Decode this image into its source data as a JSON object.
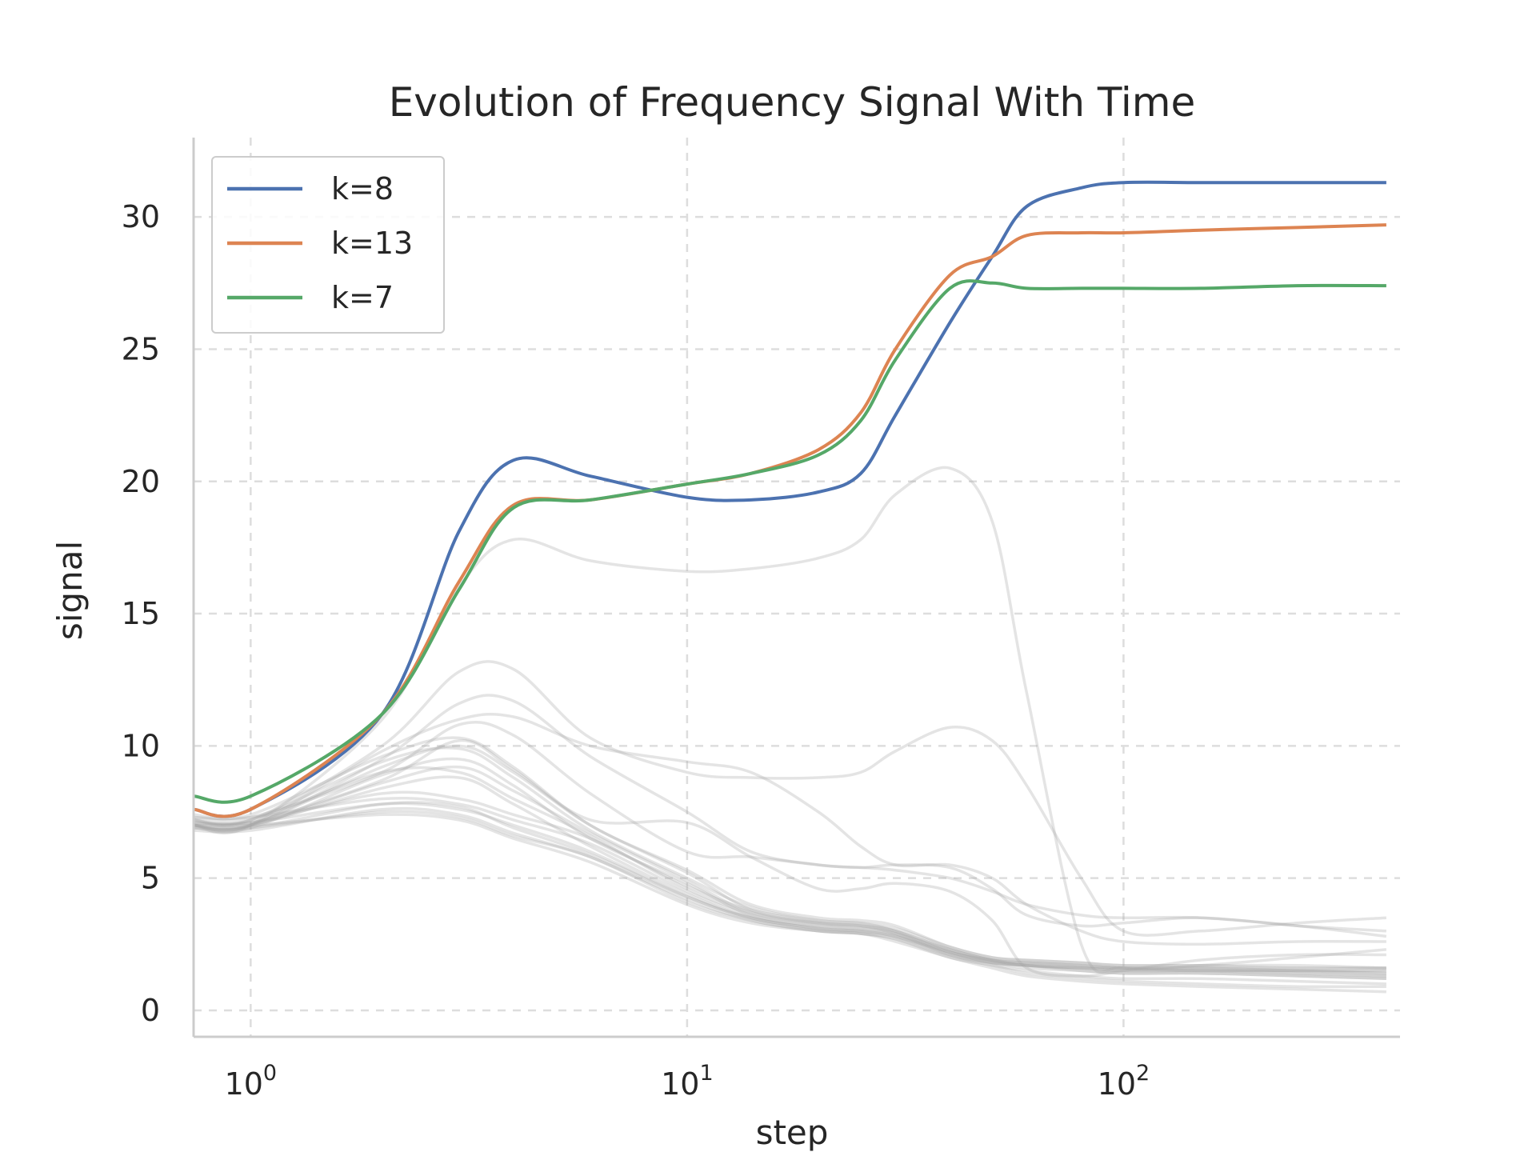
{
  "chart_data": {
    "type": "line",
    "title": "Evolution of Frequency Signal With Time",
    "xlabel": "step",
    "ylabel": "signal",
    "xscale": "log",
    "xlim": [
      0.74,
      430
    ],
    "ylim": [
      -1,
      33
    ],
    "x_ticks": [
      {
        "value": 1,
        "base": "10",
        "exp": "0"
      },
      {
        "value": 10,
        "base": "10",
        "exp": "1"
      },
      {
        "value": 100,
        "base": "10",
        "exp": "2"
      }
    ],
    "y_ticks": [
      0,
      5,
      10,
      15,
      20,
      25,
      30
    ],
    "grid": true,
    "legend_position": "top-left",
    "series": [
      {
        "name": "k=8",
        "color": "#4c72b0",
        "x": [
          0.74,
          1,
          2,
          3,
          4,
          6,
          10,
          14,
          20,
          25,
          30,
          40,
          50,
          60,
          80,
          100,
          150,
          250,
          400
        ],
        "y": [
          7.6,
          7.6,
          11.2,
          18.1,
          20.8,
          20.2,
          19.4,
          19.3,
          19.6,
          20.3,
          22.5,
          26.0,
          28.5,
          30.4,
          31.1,
          31.3,
          31.3,
          31.3,
          31.3
        ]
      },
      {
        "name": "k=13",
        "color": "#dd8452",
        "x": [
          0.74,
          1,
          2,
          3,
          4,
          6,
          10,
          14,
          20,
          25,
          30,
          40,
          50,
          60,
          80,
          100,
          150,
          250,
          400
        ],
        "y": [
          7.6,
          7.6,
          11.2,
          16.2,
          19.1,
          19.3,
          19.9,
          20.3,
          21.2,
          22.6,
          25.0,
          27.8,
          28.5,
          29.3,
          29.4,
          29.4,
          29.5,
          29.6,
          29.7
        ]
      },
      {
        "name": "k=7",
        "color": "#55a868",
        "x": [
          0.74,
          1,
          2,
          3,
          4,
          6,
          10,
          14,
          20,
          25,
          30,
          40,
          50,
          60,
          80,
          100,
          150,
          250,
          400
        ],
        "y": [
          8.1,
          8.1,
          11.2,
          15.9,
          19.0,
          19.3,
          19.9,
          20.3,
          21.0,
          22.3,
          24.6,
          27.3,
          27.5,
          27.3,
          27.3,
          27.3,
          27.3,
          27.4,
          27.4
        ]
      }
    ],
    "background_series": {
      "color": "#a6a6a6",
      "x": [
        0.74,
        1,
        2,
        3,
        4,
        6,
        10,
        14,
        20,
        25,
        30,
        40,
        50,
        60,
        80,
        100,
        150,
        250,
        400
      ],
      "lines": [
        [
          7.0,
          7.0,
          11.0,
          16.0,
          17.8,
          17.0,
          16.6,
          16.7,
          17.1,
          17.8,
          19.5,
          20.5,
          18.5,
          12.0,
          2.5,
          1.6,
          1.7,
          2.0,
          2.3
        ],
        [
          7.2,
          7.2,
          10.0,
          12.8,
          12.9,
          10.3,
          9.0,
          8.8,
          8.8,
          9.0,
          9.8,
          10.7,
          10.2,
          8.5,
          5.0,
          3.0,
          3.0,
          3.3,
          3.5
        ],
        [
          7.0,
          7.0,
          9.5,
          11.6,
          11.7,
          9.6,
          7.5,
          6.0,
          5.5,
          5.4,
          5.3,
          5.0,
          4.5,
          4.0,
          3.6,
          3.5,
          3.5,
          3.2,
          2.8
        ],
        [
          7.0,
          7.0,
          9.8,
          11.0,
          11.1,
          10.0,
          9.4,
          9.0,
          7.5,
          6.2,
          5.5,
          5.5,
          5.0,
          4.0,
          3.0,
          2.6,
          2.5,
          2.6,
          2.6
        ],
        [
          7.3,
          7.3,
          9.0,
          10.8,
          10.4,
          8.2,
          6.0,
          5.8,
          5.5,
          5.4,
          5.5,
          5.4,
          4.6,
          3.6,
          3.2,
          3.3,
          3.5,
          3.2,
          3.0
        ],
        [
          7.1,
          7.1,
          8.7,
          10.2,
          9.1,
          7.2,
          7.1,
          5.8,
          4.6,
          4.6,
          4.8,
          4.5,
          3.4,
          1.6,
          1.3,
          1.5,
          1.9,
          2.1,
          2.1
        ],
        [
          7.0,
          7.0,
          9.2,
          10.0,
          9.0,
          7.0,
          5.2,
          3.8,
          3.3,
          3.2,
          3.0,
          2.3,
          1.9,
          1.7,
          1.6,
          1.5,
          1.5,
          1.4,
          1.3
        ],
        [
          6.9,
          6.9,
          8.9,
          9.5,
          8.5,
          6.5,
          4.8,
          3.6,
          3.2,
          3.1,
          2.9,
          2.1,
          1.8,
          1.7,
          1.5,
          1.4,
          1.4,
          1.3,
          1.2
        ],
        [
          7.2,
          7.2,
          9.4,
          9.9,
          8.8,
          6.8,
          5.0,
          3.9,
          3.4,
          3.3,
          3.0,
          2.2,
          1.9,
          1.8,
          1.7,
          1.6,
          1.6,
          1.5,
          1.4
        ],
        [
          7.0,
          7.0,
          8.4,
          8.8,
          7.8,
          6.2,
          4.4,
          3.5,
          3.1,
          3.0,
          2.8,
          2.2,
          1.8,
          1.7,
          1.6,
          1.5,
          1.5,
          1.5,
          1.4
        ],
        [
          6.8,
          6.8,
          7.6,
          7.4,
          6.7,
          5.8,
          4.2,
          3.4,
          3.0,
          2.9,
          2.7,
          2.1,
          1.8,
          1.6,
          1.5,
          1.4,
          1.4,
          1.3,
          1.2
        ],
        [
          7.1,
          7.1,
          7.8,
          7.6,
          7.0,
          6.0,
          4.3,
          3.5,
          3.1,
          3.0,
          2.8,
          2.2,
          1.9,
          1.7,
          1.6,
          1.6,
          1.5,
          1.5,
          1.5
        ],
        [
          7.3,
          7.3,
          8.0,
          7.8,
          7.2,
          6.3,
          4.5,
          3.6,
          3.2,
          3.1,
          2.9,
          2.3,
          1.9,
          1.8,
          1.7,
          1.6,
          1.6,
          1.6,
          1.6
        ],
        [
          7.0,
          7.0,
          7.4,
          7.2,
          6.5,
          5.6,
          4.0,
          3.3,
          3.0,
          2.9,
          2.6,
          2.0,
          1.6,
          1.3,
          1.1,
          1.0,
          0.9,
          0.8,
          0.7
        ],
        [
          6.9,
          6.9,
          7.5,
          7.3,
          6.6,
          5.8,
          4.1,
          3.4,
          3.0,
          2.9,
          2.7,
          2.0,
          1.7,
          1.4,
          1.2,
          1.1,
          1.0,
          0.9,
          0.9
        ],
        [
          7.2,
          7.2,
          9.0,
          9.0,
          8.0,
          6.6,
          4.6,
          3.7,
          3.3,
          3.2,
          3.0,
          2.3,
          1.9,
          1.8,
          1.7,
          1.6,
          1.6,
          1.5,
          1.5
        ],
        [
          7.4,
          7.4,
          9.6,
          10.3,
          9.2,
          7.0,
          5.3,
          4.0,
          3.5,
          3.4,
          3.2,
          2.4,
          2.0,
          1.9,
          1.8,
          1.7,
          1.7,
          1.6,
          1.6
        ],
        [
          7.1,
          7.1,
          8.2,
          8.0,
          7.4,
          6.5,
          4.7,
          3.8,
          3.4,
          3.3,
          3.1,
          2.4,
          2.0,
          1.9,
          1.8,
          1.7,
          1.7,
          1.7,
          1.6
        ],
        [
          6.9,
          6.9,
          7.8,
          7.7,
          6.9,
          5.9,
          4.3,
          3.5,
          3.1,
          3.0,
          2.8,
          2.1,
          1.7,
          1.5,
          1.3,
          1.2,
          1.2,
          1.1,
          1.0
        ],
        [
          7.0,
          7.0,
          8.6,
          9.2,
          8.3,
          6.7,
          4.9,
          3.7,
          3.3,
          3.2,
          2.9,
          2.2,
          1.8,
          1.7,
          1.6,
          1.5,
          1.5,
          1.4,
          1.3
        ]
      ]
    }
  }
}
